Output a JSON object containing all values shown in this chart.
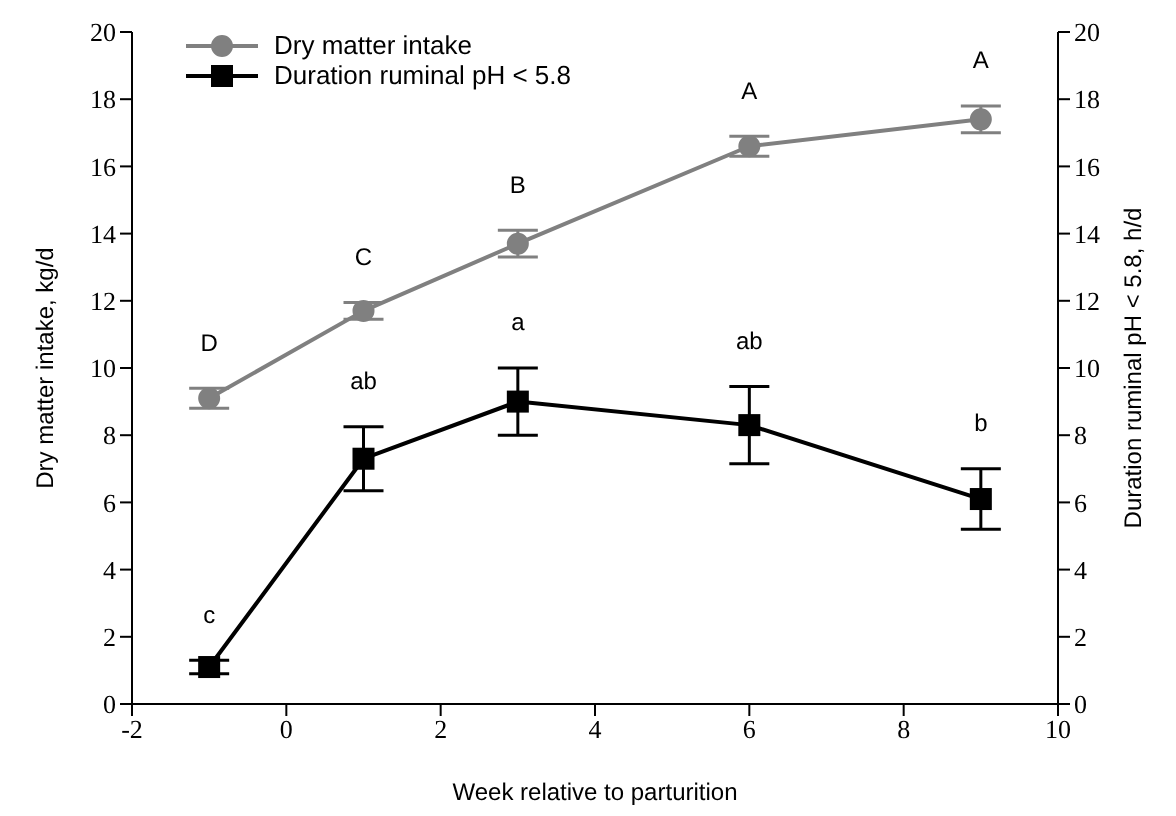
{
  "chart_data": {
    "type": "line",
    "xlabel": "Week relative to parturition",
    "ylabel": "Dry matter intake, kg/d",
    "y2label": "Duration ruminal pH < 5.8, h/d",
    "x": [
      -1,
      1,
      3,
      6,
      9
    ],
    "series": [
      {
        "name": "Dry matter intake",
        "color": "#808080",
        "marker": "circle",
        "values": [
          9.1,
          11.7,
          13.7,
          16.6,
          17.4
        ],
        "errors": [
          0.3,
          0.25,
          0.4,
          0.3,
          0.4
        ]
      },
      {
        "name": "Duration ruminal pH < 5.8",
        "color": "#000000",
        "marker": "square",
        "axis": "y2",
        "values": [
          1.1,
          7.3,
          9.0,
          8.3,
          6.1
        ],
        "errors": [
          0.2,
          0.95,
          1.0,
          1.15,
          0.9
        ]
      }
    ],
    "xlim": [
      -2,
      10
    ],
    "xticks": [
      -2,
      0,
      2,
      4,
      6,
      8,
      10
    ],
    "ylim": [
      0,
      20
    ],
    "yticks": [
      0,
      2,
      4,
      6,
      8,
      10,
      12,
      14,
      16,
      18,
      20
    ],
    "y2lim": [
      0,
      20
    ],
    "y2ticks": [
      0,
      2,
      4,
      6,
      8,
      10,
      12,
      14,
      16,
      18,
      20
    ],
    "legend": "top left",
    "line_style": "solid",
    "annotations": [
      {
        "text": "D",
        "x": -1,
        "y": 9.1
      },
      {
        "text": "C",
        "x": 1,
        "y": 11.7
      },
      {
        "text": "B",
        "x": 3,
        "y": 13.7
      },
      {
        "text": "A",
        "x": 6,
        "y": 16.6
      },
      {
        "text": "A",
        "x": 9,
        "y": 17.4
      },
      {
        "text": "c",
        "x": -1,
        "y": 1.1
      },
      {
        "text": "ab",
        "x": 1,
        "y": 7.3
      },
      {
        "text": "a",
        "x": 3,
        "y": 9.0
      },
      {
        "text": "ab",
        "x": 6,
        "y": 8.3
      },
      {
        "text": "b",
        "x": 9,
        "y": 6.1
      }
    ]
  }
}
